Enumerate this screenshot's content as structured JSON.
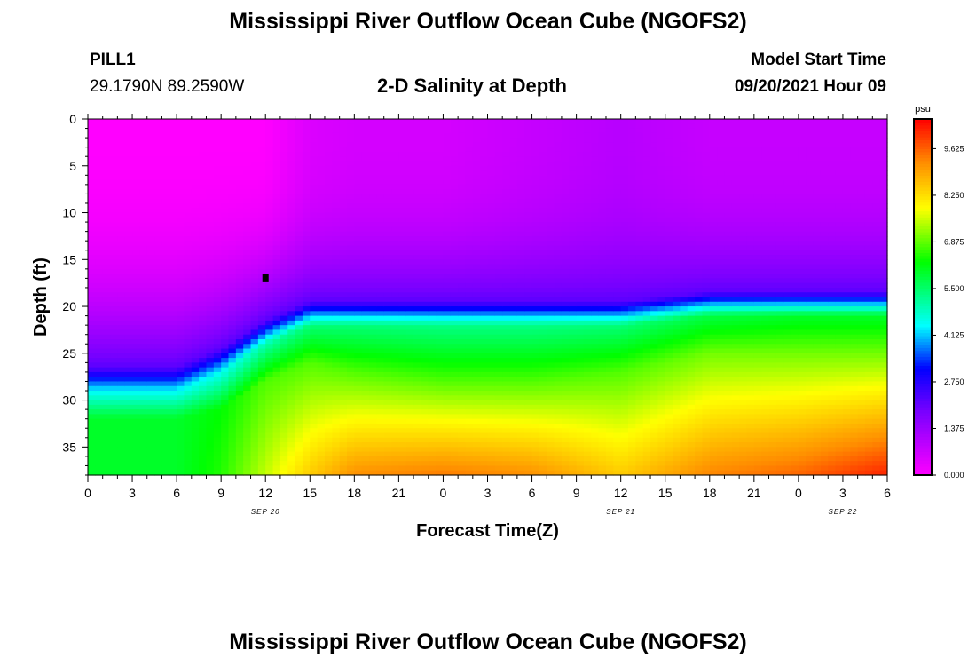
{
  "page": {
    "title_top": "Mississippi River Outflow Ocean Cube (NGOFS2)",
    "title_bottom": "Mississippi River Outflow Ocean Cube (NGOFS2)"
  },
  "station": {
    "name": "PILL1",
    "coords": "29.1790N  89.2590W"
  },
  "model": {
    "label": "Model Start Time",
    "start": "09/20/2021 Hour 09"
  },
  "chart_data": {
    "type": "heatmap",
    "title": "2-D Salinity at Depth",
    "xlabel": "Forecast Time(Z)",
    "ylabel": "Depth (ft)",
    "x_range_hours": [
      0,
      54
    ],
    "x_ticks": [
      "0",
      "3",
      "6",
      "9",
      "12",
      "15",
      "18",
      "21",
      "0",
      "3",
      "6",
      "9",
      "12",
      "15",
      "18",
      "21",
      "0",
      "3",
      "6"
    ],
    "date_labels": [
      {
        "hour": 12,
        "text": "SEP 20"
      },
      {
        "hour": 36,
        "text": "SEP 21"
      },
      {
        "hour": 51,
        "text": "SEP 22"
      }
    ],
    "y_range": [
      0,
      38
    ],
    "y_ticks": [
      0,
      5,
      10,
      15,
      20,
      25,
      30,
      35
    ],
    "colorbar": {
      "unit": "psu",
      "min": 0,
      "max": 10.5,
      "tick_values": [
        0,
        1.375,
        2.75,
        4.125,
        5.5,
        6.875,
        8.25,
        9.625
      ],
      "tick_labels": [
        "0.000",
        "1.375",
        "2.750",
        "4.125",
        "5.500",
        "6.875",
        "8.250",
        "9.625"
      ]
    },
    "marker": {
      "hour": 12,
      "depth": 17
    },
    "halocline_profile": {
      "hours": [
        0,
        6,
        9,
        12,
        15,
        18,
        24,
        30,
        36,
        42,
        48,
        54
      ],
      "halocline_depth": [
        29,
        29,
        27,
        24,
        22,
        22,
        22,
        22,
        22,
        21,
        21,
        21
      ],
      "trans_width": [
        2.5,
        2.5,
        2.5,
        2.5,
        2.5,
        2.5,
        2.5,
        2.5,
        2.5,
        2.5,
        2.5,
        2.5
      ],
      "surface_value": [
        0,
        0,
        0,
        0,
        0.5,
        0.6,
        0.6,
        0.8,
        1.0,
        0.8,
        0.8,
        0.8
      ],
      "layer_value": [
        4.4,
        4.4,
        4.5,
        5.0,
        5.4,
        5.4,
        5.3,
        5.3,
        5.4,
        5.8,
        6.0,
        6.0
      ],
      "mid_depth": [
        32,
        32,
        31,
        28,
        26,
        27,
        28,
        28,
        27,
        25,
        25,
        25
      ],
      "mid_value": [
        6.0,
        6.0,
        6.3,
        6.8,
        6.8,
        6.8,
        6.8,
        6.8,
        6.8,
        7.0,
        7.0,
        7.0
      ],
      "bottom_value": [
        6.0,
        6.0,
        6.5,
        7.5,
        8.5,
        9.2,
        9.4,
        9.2,
        8.5,
        9.3,
        9.6,
        10.2
      ]
    }
  }
}
